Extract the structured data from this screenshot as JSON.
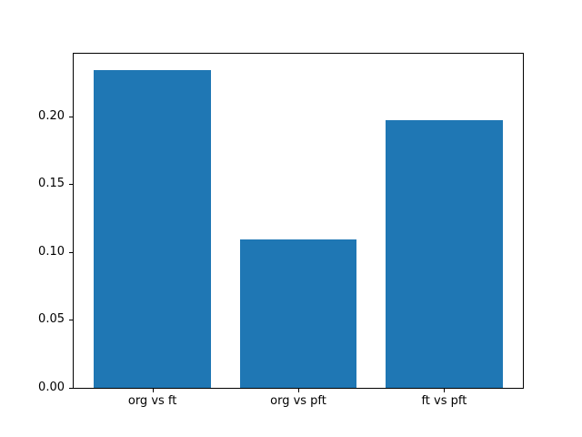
{
  "figure": {
    "background": "#ffffff",
    "axis_color": "#000000",
    "text_color": "#000000"
  },
  "chart_data": {
    "type": "bar",
    "title": "",
    "xlabel": "",
    "ylabel": "",
    "categories": [
      "org vs ft",
      "org vs pft",
      "ft vs pft"
    ],
    "values": [
      0.234,
      0.109,
      0.197
    ],
    "bar_color": "#1f77b4",
    "bar_width": 0.8,
    "ylim": [
      0,
      0.246
    ],
    "yticks": [
      "0.00",
      "0.05",
      "0.10",
      "0.15",
      "0.20"
    ],
    "grid": false,
    "legend": null
  }
}
